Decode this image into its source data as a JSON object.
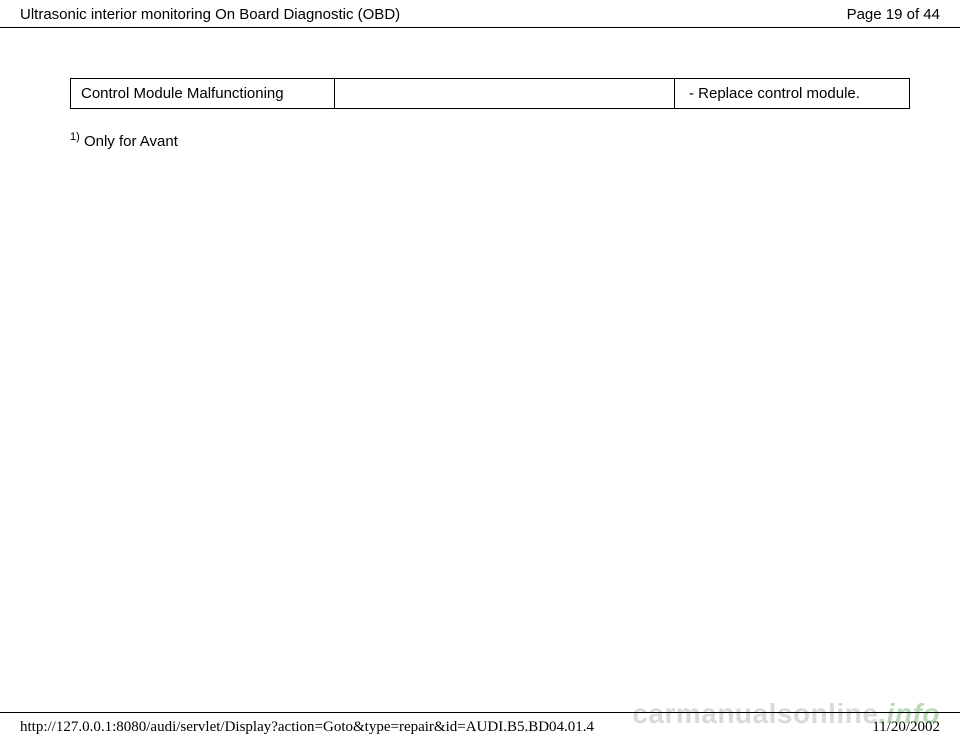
{
  "header": {
    "title": "Ultrasonic interior monitoring On Board Diagnostic (OBD)",
    "page_info": "Page 19 of 44"
  },
  "table": {
    "cell1": "Control Module Malfunctioning",
    "cell2": "",
    "cell3": "- Replace control module."
  },
  "footnote": {
    "sup": "1)",
    "text": " Only for Avant"
  },
  "footer": {
    "url": "http://127.0.0.1:8080/audi/servlet/Display?action=Goto&type=repair&id=AUDI.B5.BD04.01.4",
    "date": "11/20/2002"
  },
  "watermark": {
    "part1": "carmanualsonline",
    "part2": ".info"
  }
}
